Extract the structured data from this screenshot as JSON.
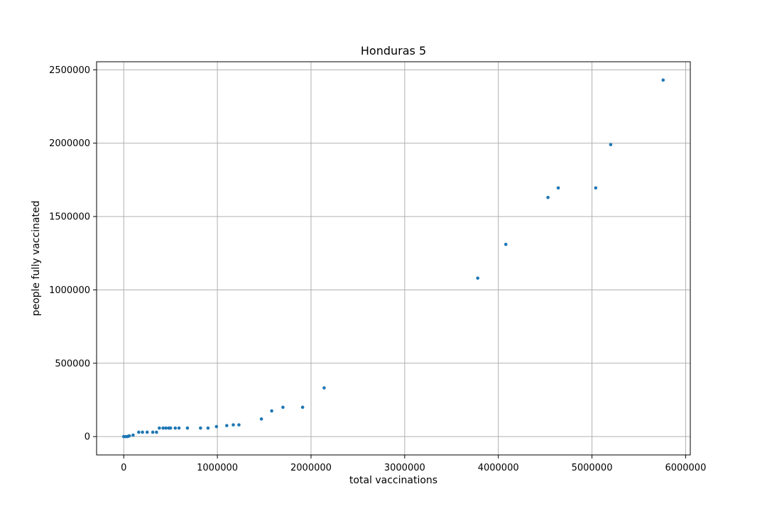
{
  "chart_data": {
    "type": "scatter",
    "title": "Honduras 5",
    "xlabel": "total vaccinations",
    "ylabel": "people fully vaccinated",
    "xlim": [
      -290000,
      6050000
    ],
    "ylim": [
      -125000,
      2555000
    ],
    "xticks": [
      0,
      1000000,
      2000000,
      3000000,
      4000000,
      5000000,
      6000000
    ],
    "xtick_labels": [
      "0",
      "1000000",
      "2000000",
      "3000000",
      "4000000",
      "5000000",
      "6000000"
    ],
    "yticks": [
      0,
      500000,
      1000000,
      1500000,
      2000000,
      2500000
    ],
    "ytick_labels": [
      "0",
      "500000",
      "1000000",
      "1500000",
      "2000000",
      "2500000"
    ],
    "grid": true,
    "marker_color": "#1f77b4",
    "series": [
      {
        "points": [
          [
            0,
            0
          ],
          [
            20000,
            0
          ],
          [
            40000,
            0
          ],
          [
            50000,
            3000
          ],
          [
            60000,
            5000
          ],
          [
            100000,
            10000
          ],
          [
            160000,
            30000
          ],
          [
            200000,
            30000
          ],
          [
            250000,
            30000
          ],
          [
            310000,
            30000
          ],
          [
            350000,
            30000
          ],
          [
            380000,
            58000
          ],
          [
            420000,
            58000
          ],
          [
            450000,
            58000
          ],
          [
            480000,
            58000
          ],
          [
            500000,
            58000
          ],
          [
            550000,
            58000
          ],
          [
            590000,
            58000
          ],
          [
            680000,
            58000
          ],
          [
            820000,
            58000
          ],
          [
            900000,
            58000
          ],
          [
            990000,
            68000
          ],
          [
            1100000,
            75000
          ],
          [
            1170000,
            80000
          ],
          [
            1230000,
            80000
          ],
          [
            1470000,
            120000
          ],
          [
            1580000,
            175000
          ],
          [
            1700000,
            200000
          ],
          [
            1910000,
            200000
          ],
          [
            2140000,
            332000
          ],
          [
            3780000,
            1080000
          ],
          [
            4080000,
            1310000
          ],
          [
            4530000,
            1630000
          ],
          [
            4640000,
            1695000
          ],
          [
            5040000,
            1695000
          ],
          [
            5200000,
            1990000
          ],
          [
            5760000,
            2430000
          ]
        ]
      }
    ]
  }
}
